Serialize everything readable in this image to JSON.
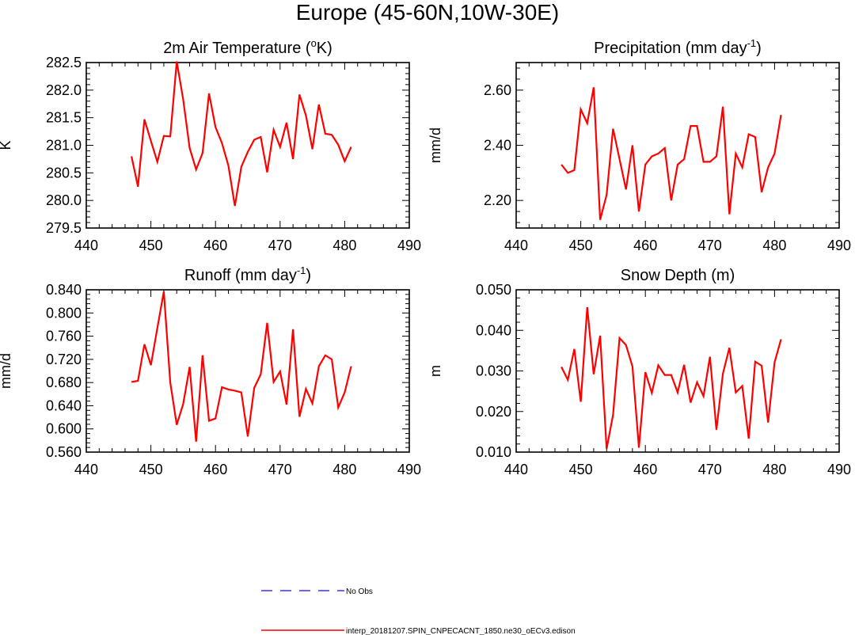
{
  "page_title": "Europe (45-60N,10W-30E)",
  "colors": {
    "model_line": "#ff0000",
    "obs_line": "#3333ff",
    "axes": "#000000"
  },
  "legend": [
    {
      "label": "No Obs",
      "style": "dashed",
      "color": "#3333ff"
    },
    {
      "label": "interp_20181207.SPIN_CNPECACNT_1850.ne30_oECv3.edison",
      "style": "solid",
      "color": "#ff0000"
    }
  ],
  "chart_data": [
    {
      "type": "line",
      "title": "2m Air Temperature (",
      "title_super": "o",
      "title_end": "K)",
      "ylabel": "K",
      "xlim": [
        440,
        490
      ],
      "x_ticks": [
        440,
        450,
        460,
        470,
        480,
        490
      ],
      "ylim": [
        279.5,
        282.5
      ],
      "y_ticks": [
        279.5,
        280.0,
        280.5,
        281.0,
        281.5,
        282.0,
        282.5
      ],
      "y_decimals": 1,
      "x": [
        447,
        448,
        449,
        450,
        451,
        452,
        453,
        454,
        455,
        456,
        457,
        458,
        459,
        460,
        461,
        462,
        463,
        464,
        465,
        466,
        467,
        468,
        469,
        470,
        471,
        472,
        473,
        474,
        475,
        476,
        477,
        478,
        479,
        480,
        481
      ],
      "values": [
        280.8,
        280.25,
        281.47,
        281.08,
        280.7,
        281.17,
        281.16,
        282.52,
        281.83,
        280.95,
        280.56,
        280.86,
        281.94,
        281.33,
        281.04,
        280.63,
        279.9,
        280.61,
        280.88,
        281.1,
        281.15,
        280.51,
        281.28,
        280.97,
        281.41,
        280.75,
        281.92,
        281.54,
        280.93,
        281.74,
        281.21,
        281.19,
        281.01,
        280.71,
        280.97
      ]
    },
    {
      "type": "line",
      "title": "Precipitation (mm day",
      "title_super": "-1",
      "title_end": ")",
      "ylabel": "mm/d",
      "xlim": [
        440,
        490
      ],
      "x_ticks": [
        440,
        450,
        460,
        470,
        480,
        490
      ],
      "ylim": [
        2.1,
        2.7
      ],
      "y_ticks": [
        2.2,
        2.4,
        2.6
      ],
      "y_decimals": 2,
      "x": [
        447,
        448,
        449,
        450,
        451,
        452,
        453,
        454,
        455,
        456,
        457,
        458,
        459,
        460,
        461,
        462,
        463,
        464,
        465,
        466,
        467,
        468,
        469,
        470,
        471,
        472,
        473,
        474,
        475,
        476,
        477,
        478,
        479,
        480,
        481
      ],
      "values": [
        2.33,
        2.3,
        2.31,
        2.53,
        2.48,
        2.61,
        2.13,
        2.22,
        2.46,
        2.35,
        2.24,
        2.4,
        2.16,
        2.33,
        2.36,
        2.37,
        2.39,
        2.2,
        2.33,
        2.35,
        2.47,
        2.47,
        2.34,
        2.34,
        2.36,
        2.54,
        2.15,
        2.37,
        2.32,
        2.44,
        2.43,
        2.23,
        2.32,
        2.37,
        2.51
      ]
    },
    {
      "type": "line",
      "title": "Runoff (mm day",
      "title_super": "-1",
      "title_end": ")",
      "ylabel": "mm/d",
      "xlim": [
        440,
        490
      ],
      "x_ticks": [
        440,
        450,
        460,
        470,
        480,
        490
      ],
      "ylim": [
        0.56,
        0.84
      ],
      "y_ticks": [
        0.56,
        0.6,
        0.64,
        0.68,
        0.72,
        0.76,
        0.8,
        0.84
      ],
      "y_decimals": 3,
      "x": [
        447,
        448,
        449,
        450,
        451,
        452,
        453,
        454,
        455,
        456,
        457,
        458,
        459,
        460,
        461,
        462,
        463,
        464,
        465,
        466,
        467,
        468,
        469,
        470,
        471,
        472,
        473,
        474,
        475,
        476,
        477,
        478,
        479,
        480,
        481
      ],
      "values": [
        0.681,
        0.683,
        0.746,
        0.71,
        0.774,
        0.837,
        0.68,
        0.607,
        0.643,
        0.707,
        0.578,
        0.727,
        0.614,
        0.618,
        0.672,
        0.668,
        0.666,
        0.663,
        0.587,
        0.671,
        0.694,
        0.783,
        0.681,
        0.699,
        0.642,
        0.772,
        0.621,
        0.669,
        0.644,
        0.708,
        0.727,
        0.72,
        0.637,
        0.663,
        0.708
      ]
    },
    {
      "type": "line",
      "title": "Snow Depth (m)",
      "title_super": "",
      "title_end": "",
      "ylabel": "m",
      "xlim": [
        440,
        490
      ],
      "x_ticks": [
        440,
        450,
        460,
        470,
        480,
        490
      ],
      "ylim": [
        0.01,
        0.05
      ],
      "y_ticks": [
        0.01,
        0.02,
        0.03,
        0.04,
        0.05
      ],
      "y_decimals": 3,
      "x": [
        447,
        448,
        449,
        450,
        451,
        452,
        453,
        454,
        455,
        456,
        457,
        458,
        459,
        460,
        461,
        462,
        463,
        464,
        465,
        466,
        467,
        468,
        469,
        470,
        471,
        472,
        473,
        474,
        475,
        476,
        477,
        478,
        479,
        480,
        481
      ],
      "values": [
        0.031,
        0.0278,
        0.0354,
        0.0224,
        0.0457,
        0.0292,
        0.0387,
        0.0108,
        0.0192,
        0.0381,
        0.0364,
        0.0311,
        0.0111,
        0.0297,
        0.0246,
        0.0314,
        0.029,
        0.029,
        0.0247,
        0.0315,
        0.0222,
        0.0272,
        0.0238,
        0.0335,
        0.0155,
        0.0293,
        0.0357,
        0.0247,
        0.0263,
        0.0133,
        0.0323,
        0.0313,
        0.0173,
        0.0321,
        0.0378
      ]
    }
  ]
}
